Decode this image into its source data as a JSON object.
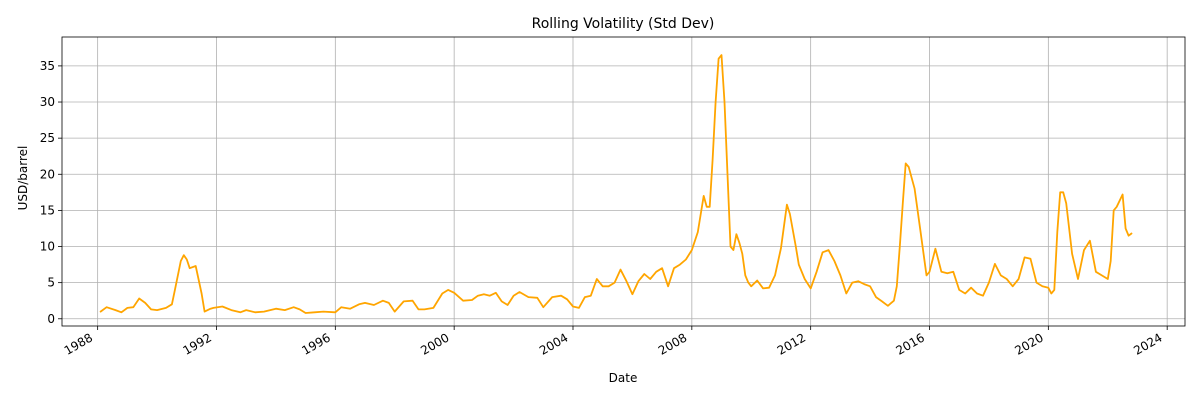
{
  "chart_data": {
    "type": "line",
    "title": "Rolling Volatility (Std Dev)",
    "xlabel": "Date",
    "ylabel": "USD/barrel",
    "xlim": [
      1986.8,
      2024.6
    ],
    "ylim": [
      -1,
      39
    ],
    "xticks": [
      1988,
      1992,
      1996,
      2000,
      2004,
      2008,
      2012,
      2016,
      2020,
      2024
    ],
    "yticks": [
      0,
      5,
      10,
      15,
      20,
      25,
      30,
      35
    ],
    "grid": true,
    "line_color": "#FFA500",
    "series": [
      {
        "x": [
          1988.1,
          1988.3,
          1988.6,
          1988.8,
          1989.0,
          1989.2,
          1989.4,
          1989.6,
          1989.8,
          1990.0,
          1990.3,
          1990.5,
          1990.6,
          1990.8,
          1990.9,
          1991.0,
          1991.1,
          1991.3,
          1991.5,
          1991.6,
          1991.8,
          1991.9,
          1992.2,
          1992.5,
          1992.8,
          1993.0,
          1993.3,
          1993.6,
          1994.0,
          1994.3,
          1994.6,
          1994.8,
          1995.0,
          1995.3,
          1995.6,
          1996.0,
          1996.2,
          1996.5,
          1996.8,
          1997.0,
          1997.3,
          1997.6,
          1997.8,
          1998.0,
          1998.3,
          1998.6,
          1998.8,
          1999.0,
          1999.3,
          1999.6,
          1999.8,
          2000.0,
          2000.3,
          2000.6,
          2000.8,
          2001.0,
          2001.2,
          2001.4,
          2001.6,
          2001.8,
          2002.0,
          2002.2,
          2002.5,
          2002.8,
          2003.0,
          2003.3,
          2003.6,
          2003.8,
          2004.0,
          2004.2,
          2004.4,
          2004.6,
          2004.8,
          2005.0,
          2005.2,
          2005.4,
          2005.6,
          2005.8,
          2006.0,
          2006.2,
          2006.4,
          2006.6,
          2006.8,
          2007.0,
          2007.2,
          2007.4,
          2007.6,
          2007.8,
          2008.0,
          2008.2,
          2008.4,
          2008.5,
          2008.6,
          2008.7,
          2008.8,
          2008.9,
          2009.0,
          2009.1,
          2009.2,
          2009.3,
          2009.4,
          2009.5,
          2009.6,
          2009.7,
          2009.8,
          2009.9,
          2010.0,
          2010.2,
          2010.4,
          2010.6,
          2010.8,
          2011.0,
          2011.2,
          2011.3,
          2011.5,
          2011.6,
          2011.8,
          2012.0,
          2012.2,
          2012.4,
          2012.6,
          2012.8,
          2013.0,
          2013.2,
          2013.4,
          2013.6,
          2013.8,
          2014.0,
          2014.2,
          2014.4,
          2014.6,
          2014.8,
          2014.9,
          2015.0,
          2015.1,
          2015.2,
          2015.3,
          2015.5,
          2015.7,
          2015.9,
          2016.0,
          2016.2,
          2016.4,
          2016.6,
          2016.8,
          2017.0,
          2017.2,
          2017.4,
          2017.6,
          2017.8,
          2018.0,
          2018.2,
          2018.4,
          2018.6,
          2018.8,
          2019.0,
          2019.2,
          2019.4,
          2019.6,
          2019.8,
          2020.0,
          2020.1,
          2020.2,
          2020.3,
          2020.4,
          2020.5,
          2020.6,
          2020.8,
          2021.0,
          2021.2,
          2021.4,
          2021.6,
          2021.8,
          2022.0,
          2022.1,
          2022.2,
          2022.3,
          2022.5,
          2022.6,
          2022.7,
          2022.8
        ],
        "y": [
          1.0,
          1.6,
          1.2,
          0.9,
          1.5,
          1.6,
          2.8,
          2.2,
          1.3,
          1.2,
          1.5,
          2.0,
          4.0,
          8.0,
          8.8,
          8.2,
          7.0,
          7.3,
          3.5,
          1.0,
          1.4,
          1.5,
          1.7,
          1.2,
          0.9,
          1.2,
          0.9,
          1.0,
          1.4,
          1.2,
          1.6,
          1.3,
          0.8,
          0.9,
          1.0,
          0.9,
          1.6,
          1.4,
          2.0,
          2.2,
          1.9,
          2.5,
          2.2,
          1.0,
          2.4,
          2.5,
          1.3,
          1.3,
          1.5,
          3.5,
          4.0,
          3.6,
          2.5,
          2.6,
          3.2,
          3.4,
          3.2,
          3.6,
          2.4,
          1.9,
          3.2,
          3.7,
          3.0,
          2.9,
          1.6,
          3.0,
          3.2,
          2.7,
          1.7,
          1.5,
          3.0,
          3.2,
          5.5,
          4.5,
          4.5,
          5.0,
          6.8,
          5.2,
          3.4,
          5.2,
          6.2,
          5.5,
          6.5,
          7.0,
          4.5,
          7.0,
          7.5,
          8.2,
          9.5,
          12.0,
          17.0,
          15.5,
          15.5,
          22.0,
          30.0,
          36.0,
          36.5,
          30.0,
          20.0,
          10.0,
          9.5,
          11.7,
          10.5,
          9.0,
          6.0,
          5.0,
          4.5,
          5.3,
          4.2,
          4.3,
          6.0,
          9.8,
          15.8,
          14.5,
          10.0,
          7.5,
          5.5,
          4.2,
          6.5,
          9.2,
          9.5,
          8.0,
          6.0,
          3.5,
          5.0,
          5.2,
          4.8,
          4.5,
          3.0,
          2.4,
          1.8,
          2.5,
          4.5,
          10.0,
          16.0,
          21.5,
          21.0,
          18.0,
          12.0,
          6.0,
          6.5,
          9.7,
          6.5,
          6.3,
          6.5,
          4.0,
          3.5,
          4.3,
          3.5,
          3.2,
          5.0,
          7.6,
          6.0,
          5.5,
          4.5,
          5.5,
          8.5,
          8.3,
          5.0,
          4.5,
          4.3,
          3.5,
          4.0,
          12.0,
          17.5,
          17.5,
          16.0,
          9.0,
          5.5,
          9.5,
          10.8,
          6.5,
          6.0,
          5.5,
          8.0,
          15.0,
          15.5,
          17.2,
          12.5,
          11.5,
          11.8
        ]
      }
    ]
  }
}
